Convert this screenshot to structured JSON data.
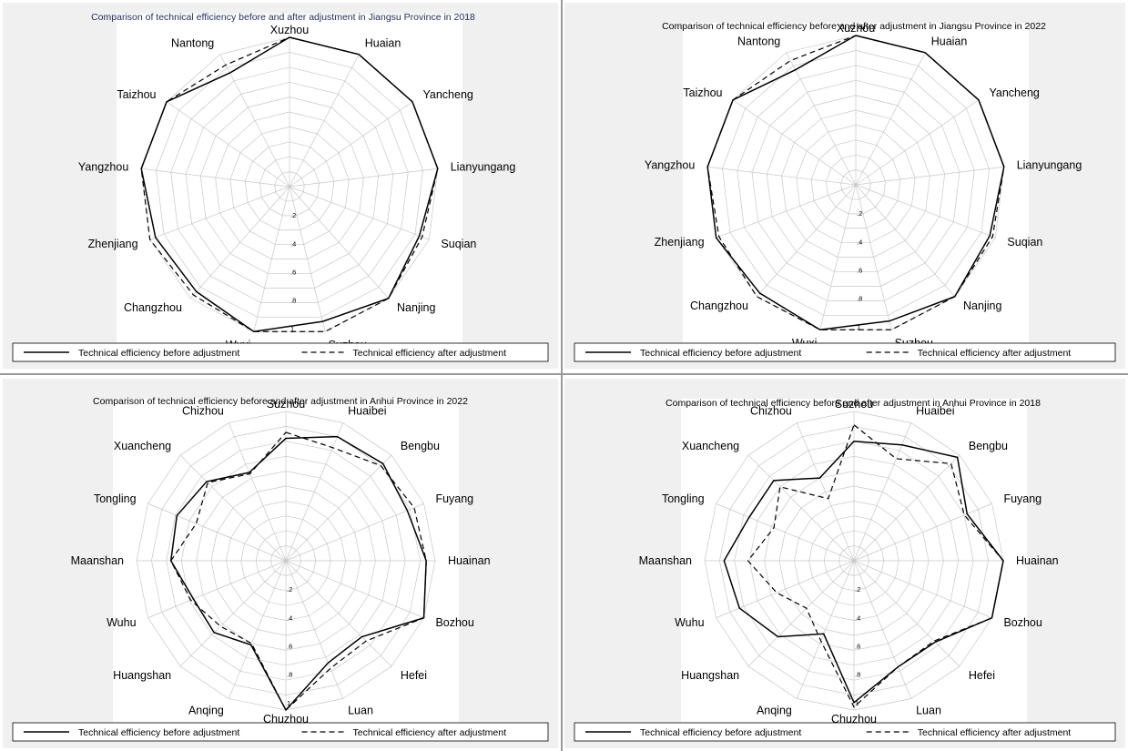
{
  "legend": {
    "before_label": "Technical efficiency before adjustment",
    "after_label": "Technical efficiency after adjustment"
  },
  "colors": {
    "background": "#ffffff",
    "panel_background": "#f0f0f0",
    "grid": "#c8c8c8",
    "series": "#000000",
    "title_2018_jiangsu": "#1f2a5a"
  },
  "chart_data": [
    {
      "type": "radar",
      "title": "Comparison of technical efficiency before and after adjustment in Jiangsu Province in 2018",
      "axes": [
        "Xuzhou",
        "Huaian",
        "Yancheng",
        "Lianyungang",
        "Suqian",
        "Nanjing",
        "Suzhou",
        "Wuxi",
        "Changzhou",
        "Zhenjiang",
        "Yangzhou",
        "Taizhou",
        "Nantong"
      ],
      "rlim": [
        0,
        1
      ],
      "r_ticks": [
        ".2",
        ".4",
        ".6",
        ".8",
        "1"
      ],
      "grid": true,
      "legend_position": "bottom",
      "series": [
        {
          "name": "Technical efficiency before adjustment",
          "style": "solid",
          "values": [
            1,
            1,
            1,
            1,
            0.93,
            1,
            0.93,
            1,
            0.94,
            0.96,
            1,
            1,
            0.86
          ]
        },
        {
          "name": "Technical efficiency after adjustment",
          "style": "dashed",
          "values": [
            1,
            1,
            1,
            1,
            0.95,
            1,
            1,
            1,
            0.97,
            1,
            1,
            1,
            0.92
          ]
        }
      ]
    },
    {
      "type": "radar",
      "title": "Comparison of technical efficiency before and after adjustment in Jiangsu Province in 2022",
      "axes": [
        "Xuzhou",
        "Huaian",
        "Yancheng",
        "Lianyungang",
        "Suqian",
        "Nanjing",
        "Suzhou",
        "Wuxi",
        "Changzhou",
        "Zhenjiang",
        "Yangzhou",
        "Taizhou",
        "Nantong"
      ],
      "rlim": [
        0,
        1
      ],
      "r_ticks": [
        ".2",
        ".4",
        ".6",
        ".8",
        "1"
      ],
      "grid": true,
      "legend_position": "bottom",
      "series": [
        {
          "name": "Technical efficiency before adjustment",
          "style": "solid",
          "values": [
            1,
            1,
            1,
            1,
            0.96,
            1,
            0.94,
            1,
            0.97,
            1,
            1,
            1,
            0.87
          ]
        },
        {
          "name": "Technical efficiency after adjustment",
          "style": "dashed",
          "values": [
            1,
            1,
            1,
            1,
            0.98,
            1,
            1,
            1,
            1,
            0.98,
            1,
            1,
            0.94
          ]
        }
      ]
    },
    {
      "type": "radar",
      "title": "Comparison of technical efficiency before and after adjustment in Anhui Province in 2022",
      "axes": [
        "Suzhou",
        "Huaibei",
        "Bengbu",
        "Fuyang",
        "Huainan",
        "Bozhou",
        "Hefei",
        "Luan",
        "Chuzhou",
        "Anqing",
        "Huangshan",
        "Wuhu",
        "Maanshan",
        "Tongling",
        "Xuancheng",
        "Chizhou"
      ],
      "rlim": [
        0,
        1
      ],
      "r_ticks": [
        ".2",
        ".4",
        ".6",
        ".8",
        "1"
      ],
      "grid": true,
      "legend_position": "bottom",
      "series": [
        {
          "name": "Technical efficiency before adjustment",
          "style": "solid",
          "values": [
            0.82,
            0.9,
            0.92,
            0.88,
            0.94,
            1,
            0.72,
            0.74,
            1,
            0.61,
            0.68,
            0.67,
            0.77,
            0.79,
            0.75,
            0.64
          ]
        },
        {
          "name": "Technical efficiency after adjustment",
          "style": "dashed",
          "values": [
            0.86,
            0.82,
            0.9,
            0.93,
            0.94,
            1,
            0.76,
            0.78,
            1,
            0.6,
            0.62,
            0.69,
            0.77,
            0.65,
            0.74,
            0.63
          ]
        }
      ]
    },
    {
      "type": "radar",
      "title": "Comparison of technical efficiency before and after adjustment in Anhui Province in 2018",
      "axes": [
        "Suzhou",
        "Huaibei",
        "Bengbu",
        "Fuyang",
        "Huainan",
        "Bozhou",
        "Hefei",
        "Luan",
        "Chuzhou",
        "Anqing",
        "Huangshan",
        "Wuhu",
        "Maanshan",
        "Tongling",
        "Xuancheng",
        "Chizhou"
      ],
      "rlim": [
        0,
        1
      ],
      "r_ticks": [
        ".2",
        ".4",
        ".6",
        ".8",
        "1"
      ],
      "grid": true,
      "legend_position": "bottom",
      "series": [
        {
          "name": "Technical efficiency before adjustment",
          "style": "solid",
          "values": [
            0.8,
            0.84,
            0.98,
            0.82,
            1,
            1,
            0.77,
            0.77,
            0.95,
            0.53,
            0.72,
            0.83,
            0.87,
            0.76,
            0.76,
            0.6
          ]
        },
        {
          "name": "Technical efficiency after adjustment",
          "style": "dashed",
          "values": [
            0.91,
            0.74,
            0.92,
            0.8,
            1,
            1,
            0.76,
            0.77,
            0.98,
            0.58,
            0.45,
            0.56,
            0.71,
            0.58,
            0.7,
            0.45
          ]
        }
      ]
    }
  ]
}
